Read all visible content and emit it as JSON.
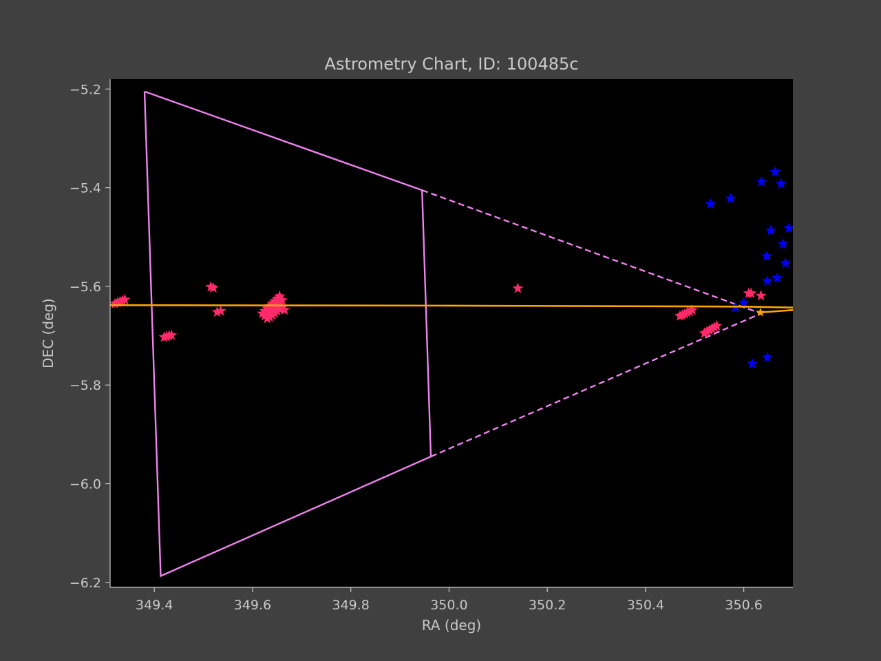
{
  "chart_data": {
    "type": "scatter",
    "title": "Astrometry Chart, ID: 100485c",
    "xlabel": "RA (deg)",
    "ylabel": "DEC (deg)",
    "xlim": [
      349.31,
      350.7
    ],
    "ylim": [
      -6.21,
      -5.18
    ],
    "x_ticks": [
      349.4,
      349.6,
      349.8,
      350.0,
      350.2,
      350.4,
      350.6
    ],
    "x_tick_labels": [
      "349.4",
      "349.6",
      "349.8",
      "350.0",
      "350.2",
      "350.4",
      "350.6"
    ],
    "y_ticks": [
      -5.2,
      -5.4,
      -5.6,
      -5.8,
      -6.0,
      -6.2
    ],
    "y_tick_labels": [
      "−5.2",
      "−5.4",
      "−5.6",
      "−5.8",
      "−6.0",
      "−6.2"
    ],
    "grid": false,
    "colors": {
      "figure_bg": "#404040",
      "plot_bg": "#000000",
      "axis_text": "#c8c8c8",
      "fov": "#ee82ee",
      "track": "#ffa500",
      "observed": "#ff2a6a",
      "reference": "#0000ff"
    },
    "field_of_view": {
      "solid_polygon": [
        [
          349.38,
          -5.205
        ],
        [
          349.945,
          -5.405
        ],
        [
          349.963,
          -5.945
        ],
        [
          349.413,
          -6.187
        ],
        [
          349.38,
          -5.205
        ]
      ],
      "dashed_lines": [
        [
          [
            349.945,
            -5.405
          ],
          [
            350.635,
            -5.655
          ]
        ],
        [
          [
            349.963,
            -5.945
          ],
          [
            350.635,
            -5.655
          ]
        ]
      ]
    },
    "predicted_track": [
      [
        349.31,
        -5.638
      ],
      [
        350.0,
        -5.639
      ],
      [
        350.6,
        -5.641
      ],
      [
        350.7,
        -5.643
      ]
    ],
    "predicted_track_tail": [
      [
        350.63,
        -5.653
      ],
      [
        350.7,
        -5.648
      ]
    ],
    "track_marker": [
      350.634,
      -5.653
    ],
    "observed_stars": [
      [
        349.32,
        -5.635
      ],
      [
        349.325,
        -5.633
      ],
      [
        349.33,
        -5.631
      ],
      [
        349.335,
        -5.629
      ],
      [
        349.34,
        -5.627
      ],
      [
        349.515,
        -5.601
      ],
      [
        349.52,
        -5.603
      ],
      [
        349.528,
        -5.652
      ],
      [
        349.535,
        -5.65
      ],
      [
        349.42,
        -5.703
      ],
      [
        349.425,
        -5.702
      ],
      [
        349.43,
        -5.7
      ],
      [
        349.435,
        -5.699
      ],
      [
        349.62,
        -5.655
      ],
      [
        349.625,
        -5.65
      ],
      [
        349.63,
        -5.645
      ],
      [
        349.635,
        -5.64
      ],
      [
        349.64,
        -5.635
      ],
      [
        349.645,
        -5.63
      ],
      [
        349.65,
        -5.625
      ],
      [
        349.655,
        -5.62
      ],
      [
        349.625,
        -5.66
      ],
      [
        349.63,
        -5.655
      ],
      [
        349.635,
        -5.65
      ],
      [
        349.64,
        -5.645
      ],
      [
        349.645,
        -5.64
      ],
      [
        349.65,
        -5.636
      ],
      [
        349.655,
        -5.632
      ],
      [
        349.66,
        -5.628
      ],
      [
        349.63,
        -5.665
      ],
      [
        349.635,
        -5.662
      ],
      [
        349.64,
        -5.658
      ],
      [
        349.645,
        -5.654
      ],
      [
        349.65,
        -5.65
      ],
      [
        349.655,
        -5.646
      ],
      [
        349.66,
        -5.642
      ],
      [
        349.665,
        -5.648
      ],
      [
        350.14,
        -5.604
      ],
      [
        350.47,
        -5.66
      ],
      [
        350.475,
        -5.658
      ],
      [
        350.48,
        -5.656
      ],
      [
        350.485,
        -5.653
      ],
      [
        350.49,
        -5.651
      ],
      [
        350.495,
        -5.648
      ],
      [
        350.52,
        -5.695
      ],
      [
        350.525,
        -5.692
      ],
      [
        350.53,
        -5.689
      ],
      [
        350.535,
        -5.686
      ],
      [
        350.54,
        -5.683
      ],
      [
        350.545,
        -5.68
      ],
      [
        350.61,
        -5.614
      ],
      [
        350.615,
        -5.614
      ],
      [
        350.635,
        -5.619
      ]
    ],
    "reference_stars": [
      [
        350.532,
        -5.433
      ],
      [
        350.573,
        -5.422
      ],
      [
        350.636,
        -5.388
      ],
      [
        350.664,
        -5.368
      ],
      [
        350.676,
        -5.392
      ],
      [
        350.655,
        -5.487
      ],
      [
        350.692,
        -5.482
      ],
      [
        350.68,
        -5.514
      ],
      [
        350.647,
        -5.539
      ],
      [
        350.685,
        -5.553
      ],
      [
        350.648,
        -5.589
      ],
      [
        350.668,
        -5.583
      ],
      [
        350.6,
        -5.633
      ],
      [
        350.583,
        -5.643
      ],
      [
        350.617,
        -5.757
      ],
      [
        350.648,
        -5.744
      ]
    ]
  }
}
